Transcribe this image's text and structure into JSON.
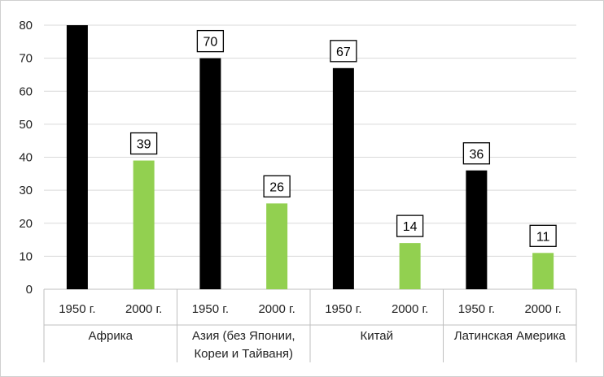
{
  "chart_data": {
    "type": "bar",
    "ylim": [
      0,
      80
    ],
    "yticks": [
      0,
      10,
      20,
      30,
      40,
      50,
      60,
      70,
      80
    ],
    "grid": true,
    "groups": [
      {
        "label": [
          "Африка"
        ],
        "bars": [
          {
            "year": "1950 г.",
            "value": 80,
            "label": ""
          },
          {
            "year": "2000 г.",
            "value": 39,
            "label": "39"
          }
        ]
      },
      {
        "label": [
          "Азия (без Японии,",
          "Кореи и Тайваня)"
        ],
        "bars": [
          {
            "year": "1950 г.",
            "value": 70,
            "label": "70"
          },
          {
            "year": "2000 г.",
            "value": 26,
            "label": "26"
          }
        ]
      },
      {
        "label": [
          "Китай"
        ],
        "bars": [
          {
            "year": "1950 г.",
            "value": 67,
            "label": "67"
          },
          {
            "year": "2000 г.",
            "value": 14,
            "label": "14"
          }
        ]
      },
      {
        "label": [
          "Латинская Америка"
        ],
        "bars": [
          {
            "year": "1950 г.",
            "value": 36,
            "label": "36"
          },
          {
            "year": "2000 г.",
            "value": 11,
            "label": "11"
          }
        ]
      }
    ],
    "colors": {
      "1950 г.": "#000000",
      "2000 г.": "#92d050"
    }
  }
}
